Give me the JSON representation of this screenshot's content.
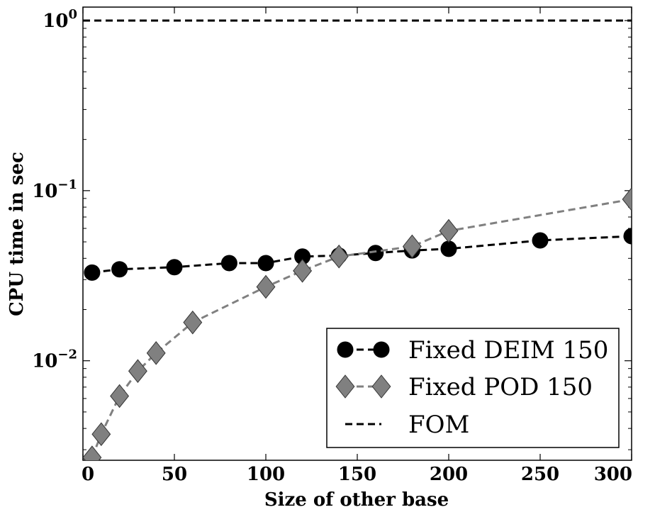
{
  "chart_data": {
    "type": "line",
    "title": "",
    "xlabel": "Size of other base",
    "ylabel": "CPU time in sec",
    "xlim": [
      0,
      300
    ],
    "ylim": [
      0.0026,
      1.2
    ],
    "yscale": "log",
    "grid": false,
    "legend_position": "bottom-right",
    "x_ticks": [
      0,
      50,
      100,
      150,
      200,
      250,
      300
    ],
    "x_tick_labels": [
      "0",
      "50",
      "100",
      "150",
      "200",
      "250",
      "300"
    ],
    "y_ticks": [
      1,
      0.1,
      0.01
    ],
    "y_tick_labels": [
      {
        "base": "10",
        "exp": "0"
      },
      {
        "base": "10",
        "exp": "−1"
      },
      {
        "base": "10",
        "exp": "−2"
      }
    ],
    "series": [
      {
        "name": "Fixed DEIM 150",
        "marker": "circle",
        "line": "dashed",
        "color": "#000000",
        "x": [
          5,
          20,
          50,
          80,
          100,
          120,
          140,
          160,
          180,
          200,
          250,
          300
        ],
        "y": [
          0.033,
          0.0345,
          0.0355,
          0.0375,
          0.0375,
          0.041,
          0.0415,
          0.043,
          0.0445,
          0.0455,
          0.051,
          0.054
        ]
      },
      {
        "name": "Fixed POD 150",
        "marker": "diamond",
        "line": "dashed",
        "color": "#808080",
        "x": [
          5,
          10,
          20,
          30,
          40,
          60,
          100,
          120,
          140,
          180,
          200,
          300
        ],
        "y": [
          0.0027,
          0.0037,
          0.0062,
          0.0087,
          0.0111,
          0.0168,
          0.0272,
          0.0338,
          0.041,
          0.047,
          0.058,
          0.089
        ]
      },
      {
        "name": "FOM",
        "marker": "none",
        "line": "dashed",
        "color": "#000000",
        "x": [
          0,
          300
        ],
        "y": [
          1.0,
          1.0
        ]
      }
    ]
  }
}
